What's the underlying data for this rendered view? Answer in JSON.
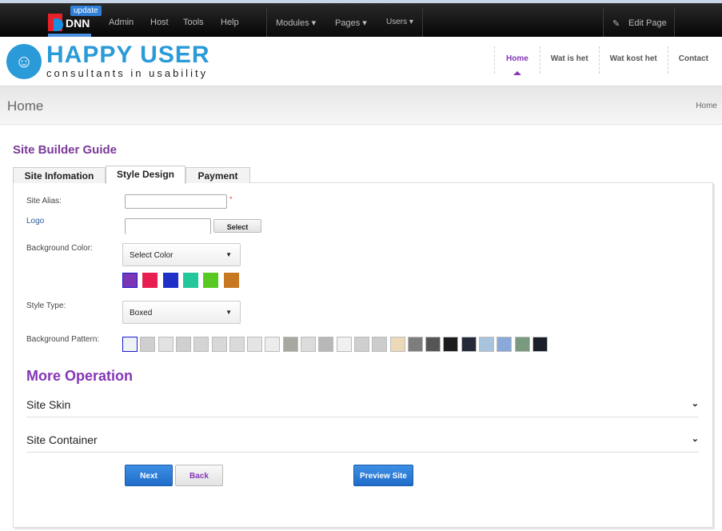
{
  "control_panel": {
    "update_badge": "update",
    "logo_text": "DNN",
    "menu": [
      "Admin",
      "Host",
      "Tools",
      "Help"
    ],
    "dropdowns": [
      "Modules",
      "Pages",
      "Users"
    ],
    "edit_page": "Edit Page"
  },
  "header": {
    "brand_title": "HAPPY USER",
    "brand_tagline": "consultants in usability",
    "nav": [
      "Home",
      "Wat is het",
      "Wat kost het",
      "Contact"
    ],
    "active": "Home"
  },
  "band": {
    "page_title": "Home",
    "breadcrumb": "Home"
  },
  "guide": {
    "title": "Site Builder Guide",
    "tabs": [
      "Site Infomation",
      "Style Design",
      "Payment"
    ],
    "active_tab": "Style Design"
  },
  "form": {
    "site_alias_label": "Site Alias:",
    "site_alias_value": "",
    "required_mark": "*",
    "logo_label": "Logo",
    "logo_value": "",
    "select_button": "Select",
    "bg_color_label": "Background Color:",
    "bg_color_value": "Select Color",
    "colors": [
      "#7b35b5",
      "#e91e50",
      "#1f30c8",
      "#22c79a",
      "#58c922",
      "#c87822"
    ],
    "style_type_label": "Style Type:",
    "style_type_value": "Boxed",
    "bg_pattern_label": "Background Pattern:",
    "patterns": [
      "#eef2f4",
      "#cfcfcf",
      "#e2e2e2",
      "#d0d0d0",
      "#d4d4d4",
      "#d8d8d8",
      "#dadada",
      "#e4e4e4",
      "#ececec",
      "#a8a8a0",
      "#dcdcdc",
      "#b8b8b8",
      "#f0f0f0",
      "#cfcfcf",
      "#cccccc",
      "#ecd9b8",
      "#7d7d7d",
      "#555555",
      "#1c1c1c",
      "#25293a",
      "#a8c4dc",
      "#8aa8d8",
      "#7a9a80",
      "#1a1e28"
    ]
  },
  "more": {
    "title": "More Operation",
    "sections": [
      "Site Skin",
      "Site Container"
    ]
  },
  "buttons": {
    "next": "Next",
    "back": "Back",
    "preview": "Preview Site"
  }
}
